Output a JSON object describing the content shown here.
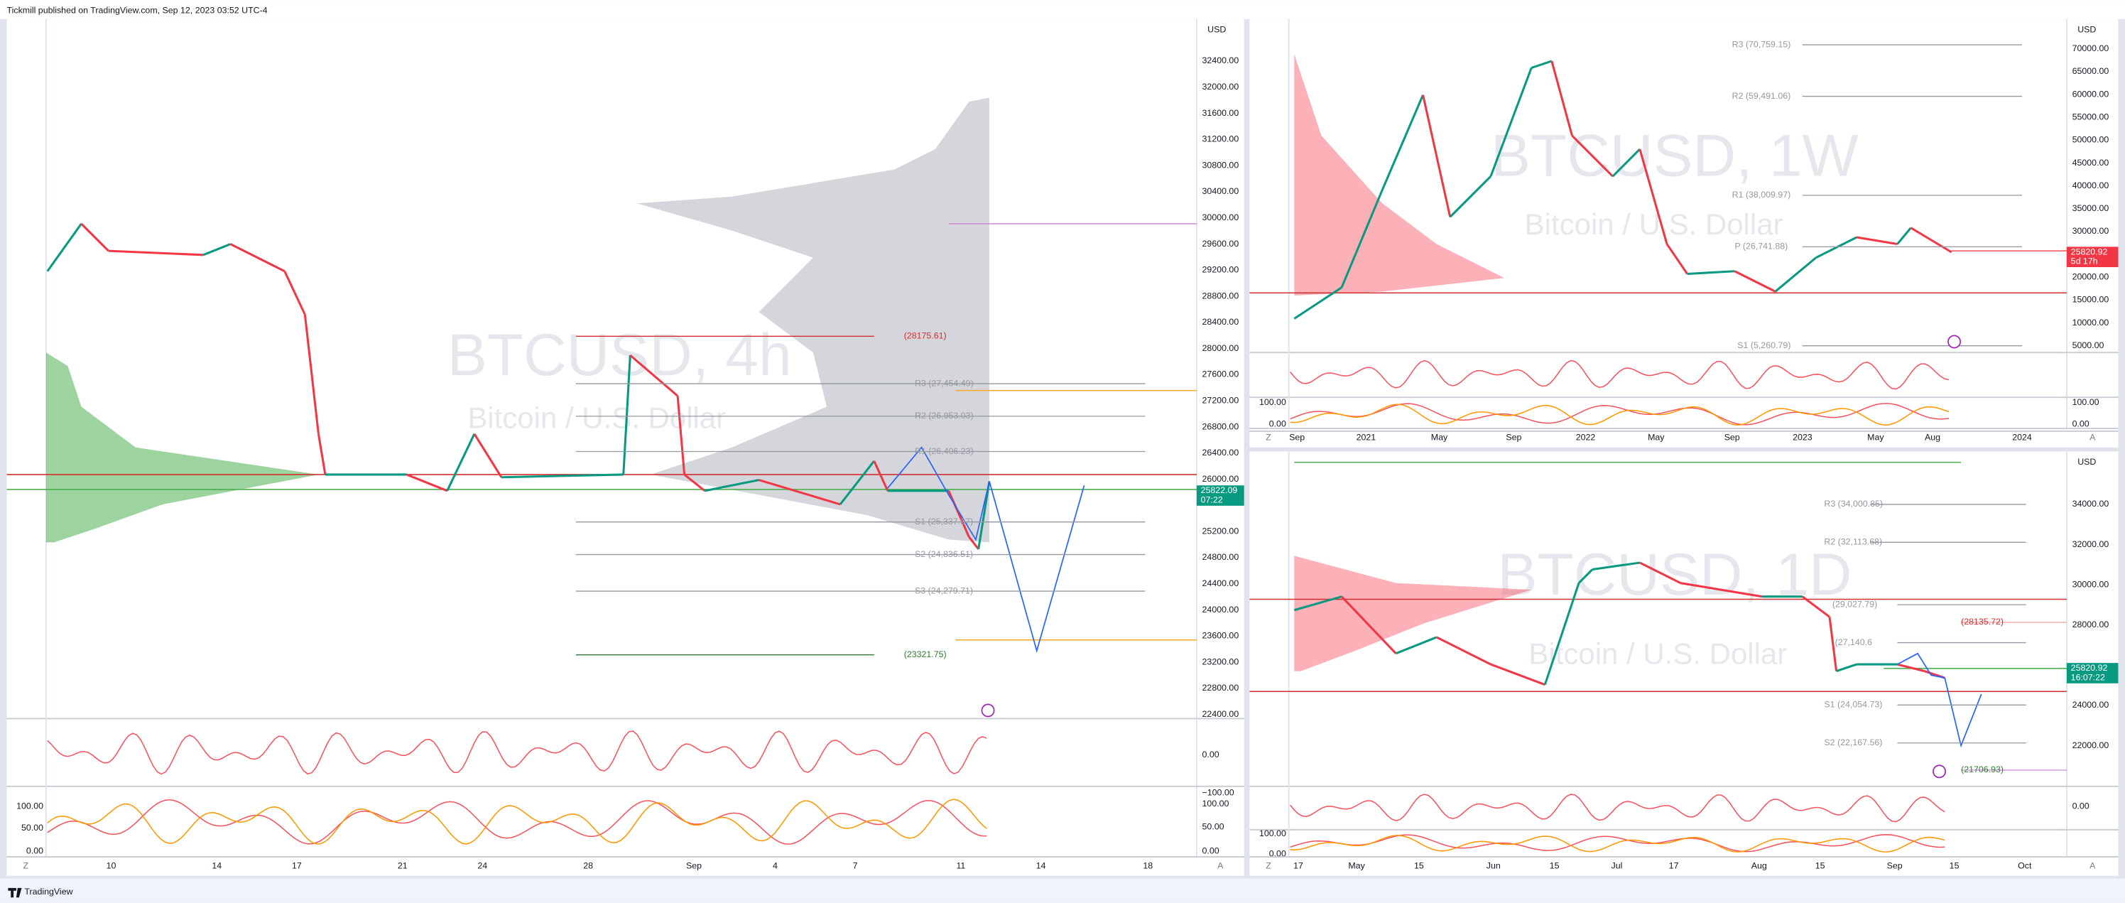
{
  "header": {
    "title": "Tickmill published on TradingView.com, Sep 12, 2023 03:52 UTC-4"
  },
  "footer": {
    "brand": "TradingView"
  },
  "controls": {
    "zoom": "Z",
    "auto": "A"
  },
  "panels": [
    {
      "symbol": "BTCUSD, 4h",
      "description": "Bitcoin / U.S. Dollar",
      "currency": "USD",
      "last_price": "25822.09",
      "countdown": "07:22",
      "price_axis": [
        "32400.00",
        "32000.00",
        "31600.00",
        "31200.00",
        "30800.00",
        "30400.00",
        "30000.00",
        "29600.00",
        "29200.00",
        "28800.00",
        "28400.00",
        "28000.00",
        "27600.00",
        "27200.00",
        "26800.00",
        "26400.00",
        "26000.00",
        "25200.00",
        "24800.00",
        "24400.00",
        "24000.00",
        "23600.00",
        "23200.00",
        "22800.00",
        "22400.00"
      ],
      "time_axis": [
        "10",
        "14",
        "17",
        "21",
        "24",
        "28",
        "Sep",
        "4",
        "7",
        "11",
        "14",
        "18"
      ],
      "levels": [
        "(28175.61)",
        "R3 (27,454.49)",
        "R2 (26,953.03)",
        "R1 (26,406.23)",
        "S1 (25,337.97)",
        "S2 (24,836.51)",
        "S3 (24,279.71)",
        "(23321.75)"
      ],
      "oscillator_axis": [
        "0.00",
        "−100.00"
      ],
      "stochastic_axis": [
        "100.00",
        "50.00",
        "0.00"
      ],
      "stochastic_axis_left": [
        "100.00",
        "50.00",
        "0.00"
      ]
    },
    {
      "symbol": "BTCUSD, 1W",
      "description": "Bitcoin / U.S. Dollar",
      "currency": "USD",
      "last_price": "25820.92",
      "countdown": "5d 17h",
      "price_axis": [
        "70000.00",
        "65000.00",
        "60000.00",
        "55000.00",
        "50000.00",
        "45000.00",
        "40000.00",
        "35000.00",
        "30000.00",
        "20000.00",
        "15000.00",
        "10000.00",
        "5000.00"
      ],
      "time_axis": [
        "Sep",
        "2021",
        "May",
        "Sep",
        "2022",
        "May",
        "Sep",
        "2023",
        "May",
        "Aug",
        "2024"
      ],
      "levels": [
        "R3 (70,759.15)",
        "R2 (59,491.06)",
        "R1 (38,009.97)",
        "P (26,741.88)",
        "S1 (5,260.79)"
      ],
      "stochastic_axis": [
        "100.00",
        "0.00"
      ],
      "stochastic_axis_left": [
        "100.00",
        "0.00"
      ]
    },
    {
      "symbol": "BTCUSD, 1D",
      "description": "Bitcoin / U.S. Dollar",
      "currency": "USD",
      "last_price": "25820.92",
      "countdown": "16:07:22",
      "price_axis": [
        "34000.00",
        "32000.00",
        "30000.00",
        "28000.00",
        "24000.00",
        "22000.00"
      ],
      "time_axis": [
        "17",
        "May",
        "15",
        "Jun",
        "15",
        "Jul",
        "17",
        "Aug",
        "15",
        "Sep",
        "15",
        "Oct"
      ],
      "levels": [
        "R3 (34,000.85)",
        "R2 (32,113.68)",
        "(29,027.79)",
        "(27,140.6",
        "(28135.72)",
        "S1 (24,054.73)",
        "S2 (22,167.56)",
        "(21706.93)"
      ],
      "oscillator_axis": [
        "0.00"
      ],
      "stochastic_axis_left": [
        "100.00",
        "0.00"
      ]
    }
  ]
}
